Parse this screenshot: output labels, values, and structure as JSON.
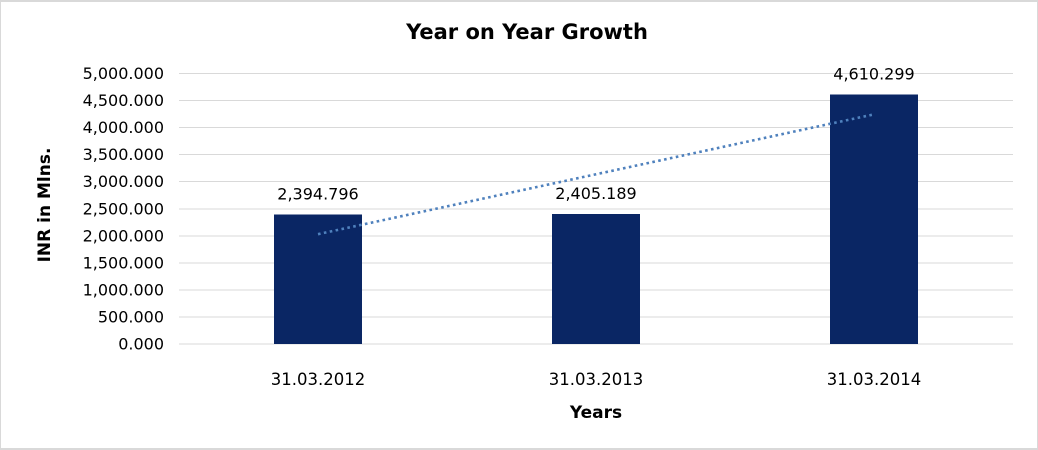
{
  "chart_data": {
    "type": "bar",
    "title": "Year on Year Growth",
    "xlabel": "Years",
    "ylabel": "INR in Mlns.",
    "categories": [
      "31.03.2012",
      "31.03.2013",
      "31.03.2014"
    ],
    "values": [
      2394.796,
      2405.189,
      4610.299
    ],
    "value_labels": [
      "2,394.796",
      "2,405.189",
      "4,610.299"
    ],
    "ylim": [
      0,
      5000
    ],
    "y_tick_step": 500,
    "y_tick_labels": [
      "0.000",
      "500.000",
      "1,000.000",
      "1,500.000",
      "2,000.000",
      "2,500.000",
      "3,000.000",
      "3,500.000",
      "4,000.000",
      "4,500.000",
      "5,000.000"
    ],
    "grid": true,
    "legend": "none",
    "trendline": {
      "type": "linear",
      "line_style": "dotted",
      "start_value": 2030,
      "end_value": 4245
    },
    "colors": {
      "bar": "#0A2664",
      "gridline": "#D9D9D9",
      "trendline": "#4F81BD",
      "text": "#000000",
      "frame_border": "#D9D9D9"
    }
  }
}
